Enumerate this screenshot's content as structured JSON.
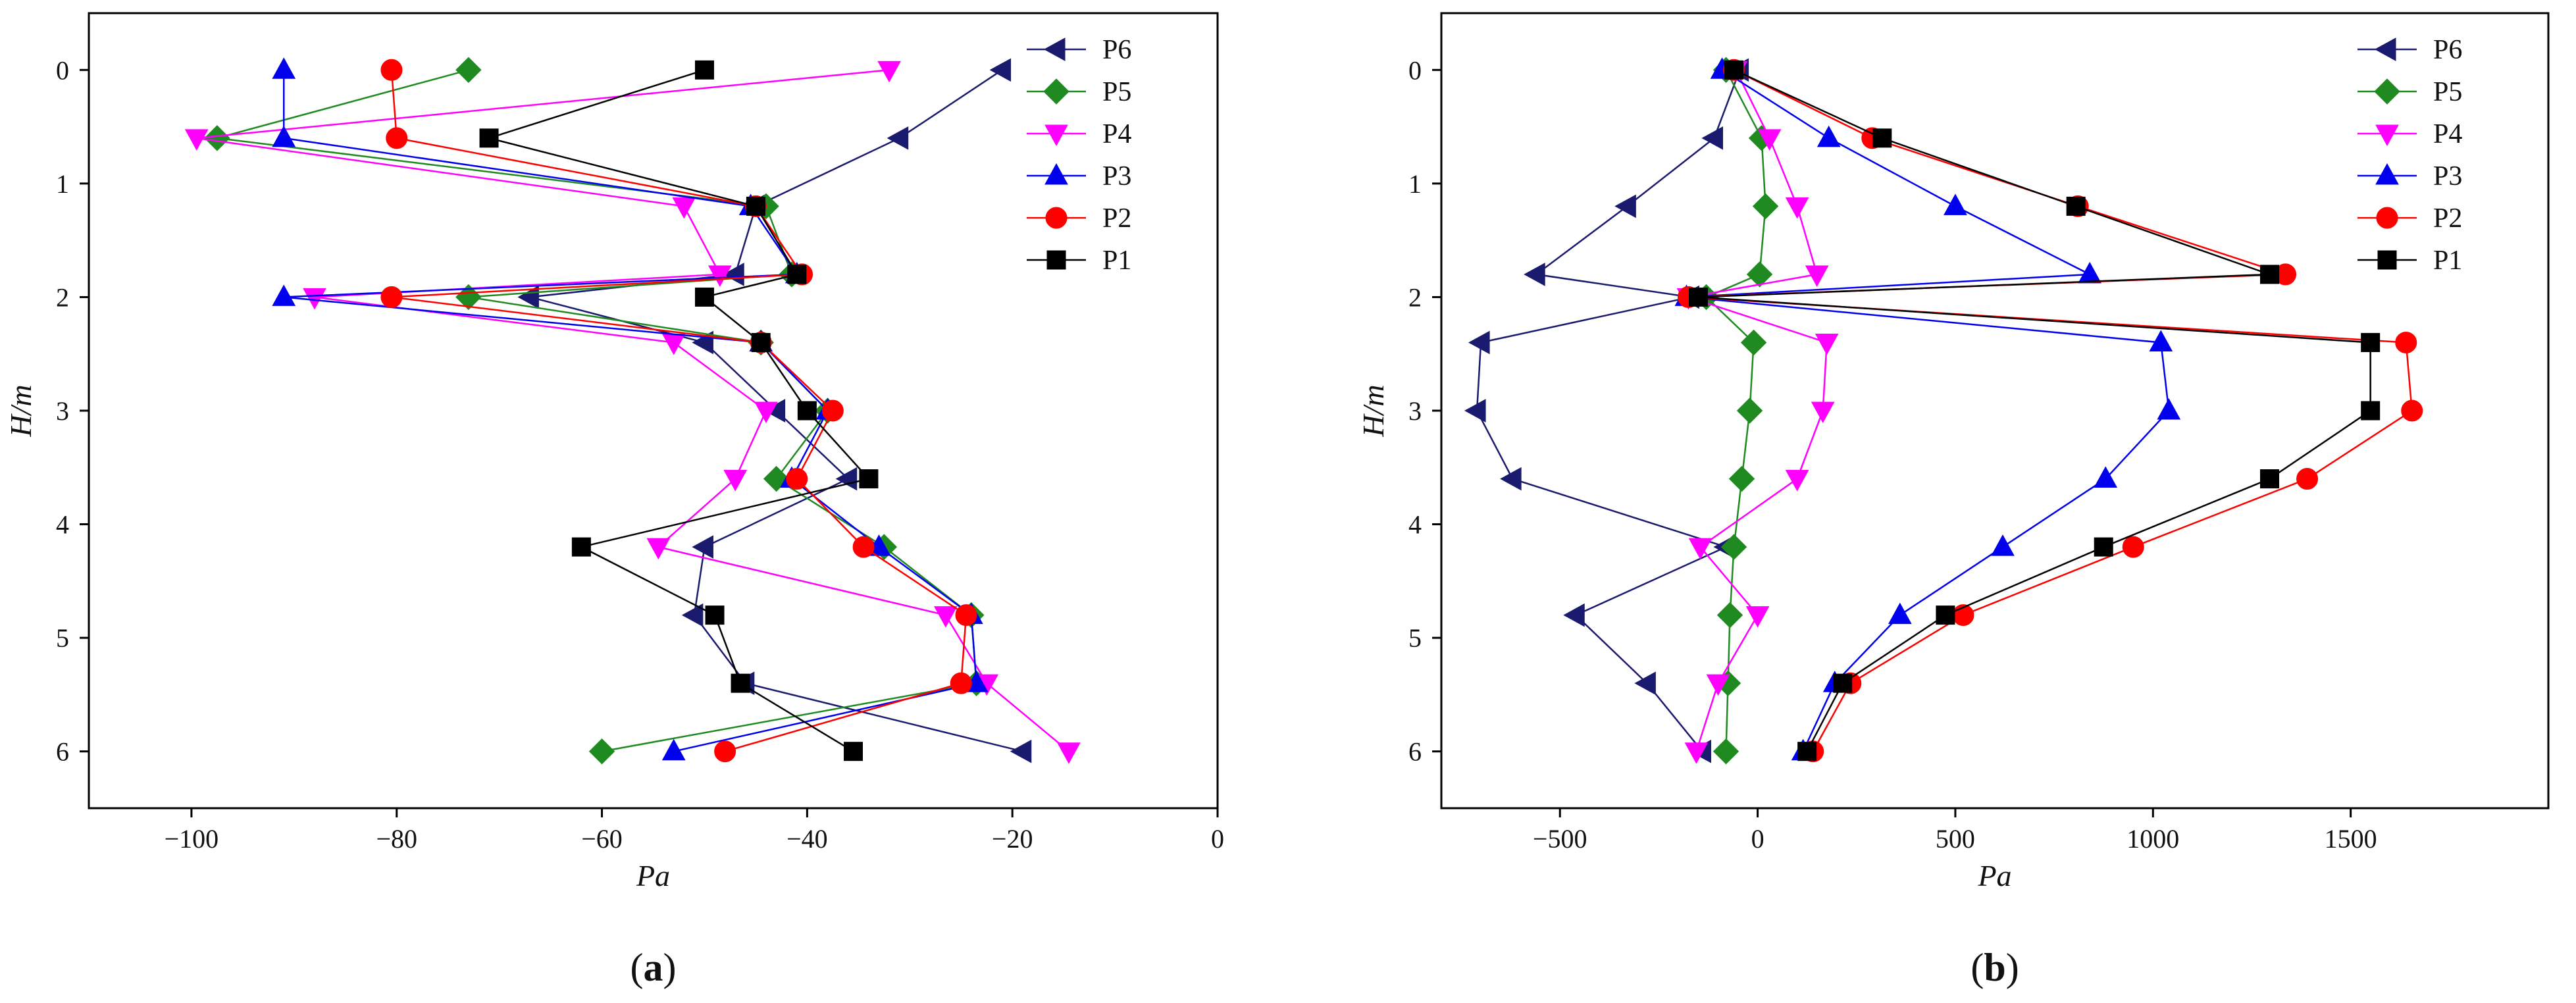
{
  "chart_data": [
    {
      "type": "line",
      "panel_label": "(a)",
      "panel_letter": "a",
      "xlabel": "Pa",
      "ylabel": "H/m",
      "xlim": [
        -110,
        0
      ],
      "ylim": [
        6.5,
        -0.5
      ],
      "xticks": [
        -100,
        -80,
        -60,
        -40,
        -20,
        0
      ],
      "yticks": [
        0,
        1,
        2,
        3,
        4,
        5,
        6
      ],
      "legend_position": "top-right",
      "series": [
        {
          "name": "P6",
          "color": "#1a1a6e",
          "marker": "triangle-left",
          "points": [
            [
              -21,
              0
            ],
            [
              -31,
              0.6
            ],
            [
              -45,
              1.2
            ],
            [
              -47,
              1.8
            ],
            [
              -67,
              2
            ],
            [
              -50,
              2.4
            ],
            [
              -43,
              3
            ],
            [
              -36,
              3.6
            ],
            [
              -50,
              4.2
            ],
            [
              -51,
              4.8
            ],
            [
              -46,
              5.4
            ],
            [
              -19,
              6
            ]
          ]
        },
        {
          "name": "P5",
          "color": "#1f8a1f",
          "marker": "diamond",
          "points": [
            [
              -73,
              0
            ],
            [
              -97.5,
              0.6
            ],
            [
              -44,
              1.2
            ],
            [
              -41.5,
              1.8
            ],
            [
              -73,
              2
            ],
            [
              -44.5,
              2.4
            ],
            [
              -38,
              3
            ],
            [
              -43,
              3.6
            ],
            [
              -32.5,
              4.2
            ],
            [
              -24,
              4.8
            ],
            [
              -23.5,
              5.4
            ],
            [
              -60,
              6
            ]
          ]
        },
        {
          "name": "P4",
          "color": "#ff00ff",
          "marker": "triangle-down",
          "points": [
            [
              -32,
              0
            ],
            [
              -99.5,
              0.6
            ],
            [
              -52,
              1.2
            ],
            [
              -48.5,
              1.8
            ],
            [
              -88,
              2
            ],
            [
              -53,
              2.4
            ],
            [
              -44,
              3
            ],
            [
              -47,
              3.6
            ],
            [
              -54.5,
              4.2
            ],
            [
              -26.5,
              4.8
            ],
            [
              -22.5,
              5.4
            ],
            [
              -14.5,
              6
            ]
          ]
        },
        {
          "name": "P3",
          "color": "#0000ee",
          "marker": "triangle-up",
          "points": [
            [
              -91,
              0
            ],
            [
              -91,
              0.6
            ],
            [
              -45.5,
              1.2
            ],
            [
              -41,
              1.8
            ],
            [
              -91,
              2
            ],
            [
              -44.5,
              2.4
            ],
            [
              -38,
              3
            ],
            [
              -41.5,
              3.6
            ],
            [
              -33,
              4.2
            ],
            [
              -24,
              4.8
            ],
            [
              -23.5,
              5.4
            ],
            [
              -53,
              6
            ]
          ]
        },
        {
          "name": "P2",
          "color": "#ff0000",
          "marker": "circle",
          "points": [
            [
              -80.5,
              0
            ],
            [
              -80,
              0.6
            ],
            [
              -45,
              1.2
            ],
            [
              -40.5,
              1.8
            ],
            [
              -80.5,
              2
            ],
            [
              -44.5,
              2.4
            ],
            [
              -37.5,
              3
            ],
            [
              -41,
              3.6
            ],
            [
              -34.5,
              4.2
            ],
            [
              -24.5,
              4.8
            ],
            [
              -25,
              5.4
            ],
            [
              -48,
              6
            ]
          ]
        },
        {
          "name": "P1",
          "color": "#000000",
          "marker": "square",
          "points": [
            [
              -50,
              0
            ],
            [
              -71,
              0.6
            ],
            [
              -45,
              1.2
            ],
            [
              -41,
              1.8
            ],
            [
              -50,
              2
            ],
            [
              -44.5,
              2.4
            ],
            [
              -40,
              3
            ],
            [
              -34,
              3.6
            ],
            [
              -62,
              4.2
            ],
            [
              -49,
              4.8
            ],
            [
              -46.5,
              5.4
            ],
            [
              -35.5,
              6
            ]
          ]
        }
      ]
    },
    {
      "type": "line",
      "panel_label": "(b)",
      "panel_letter": "b",
      "xlabel": "Pa",
      "ylabel": "H/m",
      "xlim": [
        -800,
        2000
      ],
      "ylim": [
        6.5,
        -0.5
      ],
      "xticks": [
        -500,
        0,
        500,
        1000,
        1500
      ],
      "yticks": [
        0,
        1,
        2,
        3,
        4,
        5,
        6
      ],
      "legend_position": "top-right",
      "series": [
        {
          "name": "P6",
          "color": "#1a1a6e",
          "marker": "triangle-left",
          "points": [
            [
              -45,
              0
            ],
            [
              -110,
              0.6
            ],
            [
              -330,
              1.2
            ],
            [
              -560,
              1.8
            ],
            [
              -170,
              2
            ],
            [
              -700,
              2.4
            ],
            [
              -710,
              3
            ],
            [
              -620,
              3.6
            ],
            [
              -80,
              4.2
            ],
            [
              -460,
              4.8
            ],
            [
              -280,
              5.4
            ],
            [
              -140,
              6
            ]
          ]
        },
        {
          "name": "P5",
          "color": "#1f8a1f",
          "marker": "diamond",
          "points": [
            [
              -80,
              0
            ],
            [
              10,
              0.6
            ],
            [
              20,
              1.2
            ],
            [
              5,
              1.8
            ],
            [
              -130,
              2
            ],
            [
              -10,
              2.4
            ],
            [
              -20,
              3
            ],
            [
              -40,
              3.6
            ],
            [
              -60,
              4.2
            ],
            [
              -70,
              4.8
            ],
            [
              -75,
              5.4
            ],
            [
              -80,
              6
            ]
          ]
        },
        {
          "name": "P4",
          "color": "#ff00ff",
          "marker": "triangle-down",
          "points": [
            [
              -55,
              0
            ],
            [
              30,
              0.6
            ],
            [
              100,
              1.2
            ],
            [
              150,
              1.8
            ],
            [
              -175,
              2
            ],
            [
              175,
              2.4
            ],
            [
              165,
              3
            ],
            [
              100,
              3.6
            ],
            [
              -145,
              4.2
            ],
            [
              0,
              4.8
            ],
            [
              -100,
              5.4
            ],
            [
              -155,
              6
            ]
          ]
        },
        {
          "name": "P3",
          "color": "#0000ee",
          "marker": "triangle-up",
          "points": [
            [
              -90,
              0
            ],
            [
              180,
              0.6
            ],
            [
              500,
              1.2
            ],
            [
              840,
              1.8
            ],
            [
              -180,
              2
            ],
            [
              1020,
              2.4
            ],
            [
              1040,
              3
            ],
            [
              880,
              3.6
            ],
            [
              620,
              4.2
            ],
            [
              360,
              4.8
            ],
            [
              195,
              5.4
            ],
            [
              115,
              6
            ]
          ]
        },
        {
          "name": "P2",
          "color": "#ff0000",
          "marker": "circle",
          "points": [
            [
              -60,
              0
            ],
            [
              290,
              0.6
            ],
            [
              810,
              1.2
            ],
            [
              1335,
              1.8
            ],
            [
              -175,
              2
            ],
            [
              1640,
              2.4
            ],
            [
              1655,
              3
            ],
            [
              1390,
              3.6
            ],
            [
              950,
              4.2
            ],
            [
              520,
              4.8
            ],
            [
              235,
              5.4
            ],
            [
              140,
              6
            ]
          ]
        },
        {
          "name": "P1",
          "color": "#000000",
          "marker": "square",
          "points": [
            [
              -60,
              0
            ],
            [
              315,
              0.6
            ],
            [
              805,
              1.2
            ],
            [
              1295,
              1.8
            ],
            [
              -150,
              2
            ],
            [
              1550,
              2.4
            ],
            [
              1550,
              3
            ],
            [
              1295,
              3.6
            ],
            [
              875,
              4.2
            ],
            [
              475,
              4.8
            ],
            [
              215,
              5.4
            ],
            [
              125,
              6
            ]
          ]
        }
      ]
    }
  ]
}
